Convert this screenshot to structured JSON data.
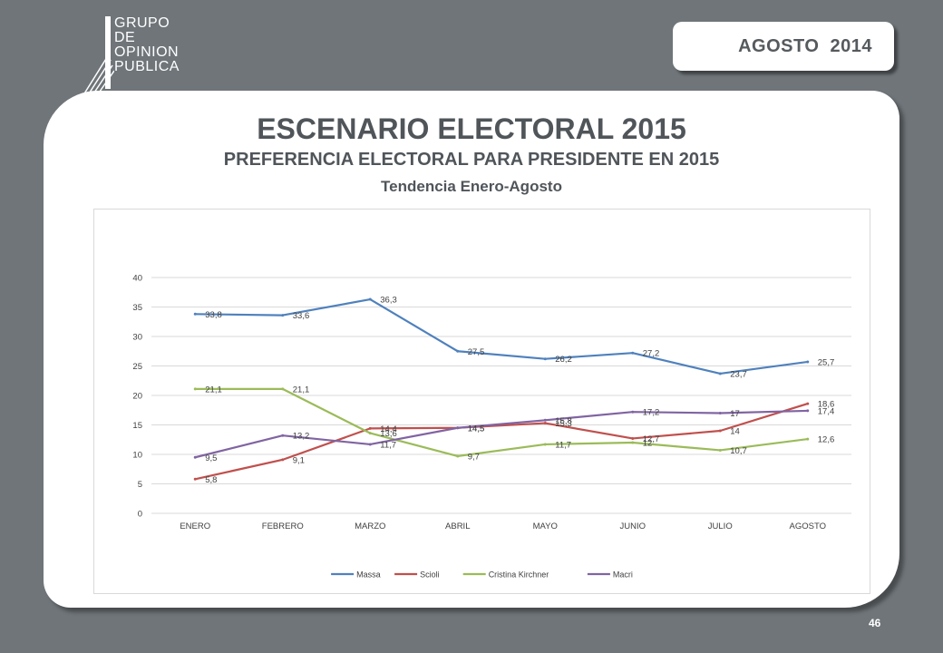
{
  "logo": {
    "lines": [
      "GRUPO",
      "DE",
      "OPINION",
      "PUBLICA"
    ]
  },
  "badge": {
    "date": "AGOSTO  2014"
  },
  "header": {
    "title": "ESCENARIO ELECTORAL 2015",
    "subtitle": "PREFERENCIA ELECTORAL PARA PRESIDENTE EN 2015",
    "subsubtitle": "Tendencia Enero-Agosto"
  },
  "page_number": "46",
  "chart_data": {
    "type": "line",
    "categories": [
      "ENERO",
      "FEBRERO",
      "MARZO",
      "ABRIL",
      "MAYO",
      "JUNIO",
      "JULIO",
      "AGOSTO"
    ],
    "ylim": [
      0,
      40
    ],
    "yticks": [
      0,
      5,
      10,
      15,
      20,
      25,
      30,
      35,
      40
    ],
    "grid": true,
    "legend": "bottom",
    "series": [
      {
        "name": "Massa",
        "color": "#4f81bd",
        "values": [
          33.8,
          33.6,
          36.3,
          27.5,
          26.2,
          27.2,
          23.7,
          25.7
        ],
        "labels": [
          "33,8",
          "33,6",
          "36,3",
          "27,5",
          "26,2",
          "27,2",
          "23,7",
          "25,7"
        ]
      },
      {
        "name": "Scioli",
        "color": "#c0504d",
        "values": [
          5.8,
          9.1,
          14.4,
          14.5,
          15.3,
          12.7,
          14,
          18.6
        ],
        "labels": [
          "5,8",
          "9,1",
          "14,4",
          "14,5",
          "15,3",
          "12,7",
          "14",
          "18,6"
        ]
      },
      {
        "name": "Cristina Kirchner",
        "color": "#9bbb59",
        "values": [
          21.1,
          21.1,
          13.6,
          9.7,
          11.7,
          12,
          10.7,
          12.6
        ],
        "labels": [
          "21,1",
          "21,1",
          "13,6",
          "9,7",
          "11,7",
          "12",
          "10,7",
          "12,6"
        ]
      },
      {
        "name": "Macri",
        "color": "#8064a2",
        "values": [
          9.5,
          13.2,
          11.7,
          14.5,
          15.8,
          17.2,
          17,
          17.4
        ],
        "labels": [
          "9,5",
          "13,2",
          "11,7",
          "14,5",
          "15,8",
          "17,2",
          "17",
          "17,4"
        ]
      }
    ]
  }
}
